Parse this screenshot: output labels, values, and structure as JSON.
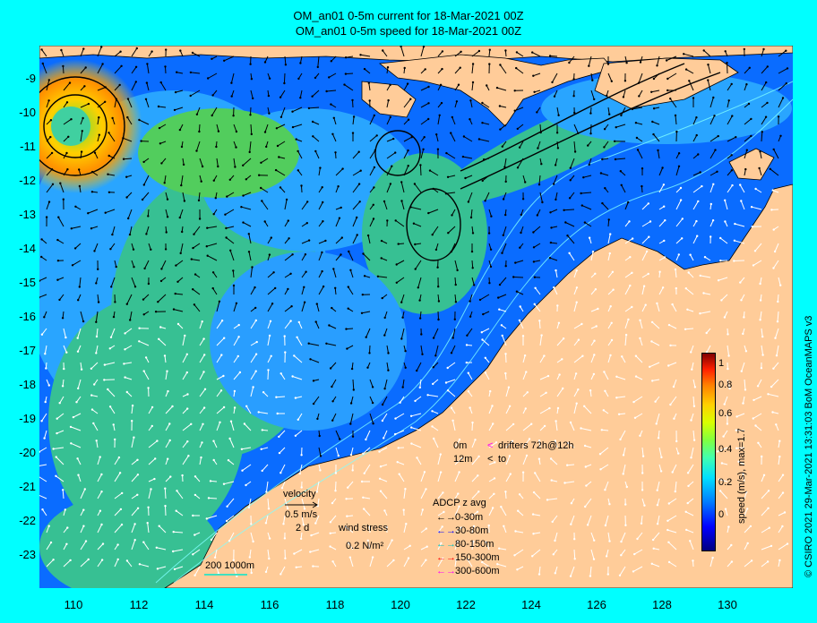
{
  "titles": {
    "current": "OM_an01 0-5m current for 18-Mar-2021 00Z",
    "speed": "OM_an01 0-5m speed for 18-Mar-2021 00Z"
  },
  "axes": {
    "lat_labels": [
      "-9",
      "-10",
      "-11",
      "-12",
      "-13",
      "-14",
      "-15",
      "-16",
      "-17",
      "-18",
      "-19",
      "-20",
      "-21",
      "-22",
      "-23"
    ],
    "lon_labels": [
      "110",
      "112",
      "114",
      "116",
      "118",
      "120",
      "122",
      "124",
      "126",
      "128",
      "130"
    ]
  },
  "colorbar": {
    "title": "speed (m/s), max=1.7",
    "ticks": [
      "1",
      "0.8",
      "0.6",
      "0.4",
      "0.2",
      "0"
    ]
  },
  "credit": "© CSIRO 2021  29-Mar-2021 13:31:03 BoM OceanMAPS v3",
  "legend": {
    "velocity_label": "velocity",
    "velocity_scale": "0.5 m/s",
    "velocity_time": "2 d",
    "wind_stress_label": "wind stress",
    "wind_stress_scale": "0.2 N/m²",
    "isobaths": "200  1000m",
    "drifter_row1_depth": "0m",
    "drifter_row1_text": "drifters 72h@12h",
    "drifter_row2_depth": "12m",
    "drifter_row2_text": "to",
    "adcp_title": "ADCP z avg",
    "adcp_items": [
      {
        "label": "0-30m",
        "color": "#000000"
      },
      {
        "label": "30-80m",
        "color": "#0000ff"
      },
      {
        "label": "80-150m",
        "color": "#00c0c0"
      },
      {
        "label": "150-300m",
        "color": "#ff0000"
      },
      {
        "label": "300-600m",
        "color": "#ff00ff"
      }
    ]
  },
  "colors": {
    "background": "#00ffff",
    "land": "#ffcc99",
    "ocean_low": "#0060ff",
    "ocean_mid": "#40c0ff",
    "ocean_high": "#60e040",
    "eddy": "#ffd000"
  }
}
